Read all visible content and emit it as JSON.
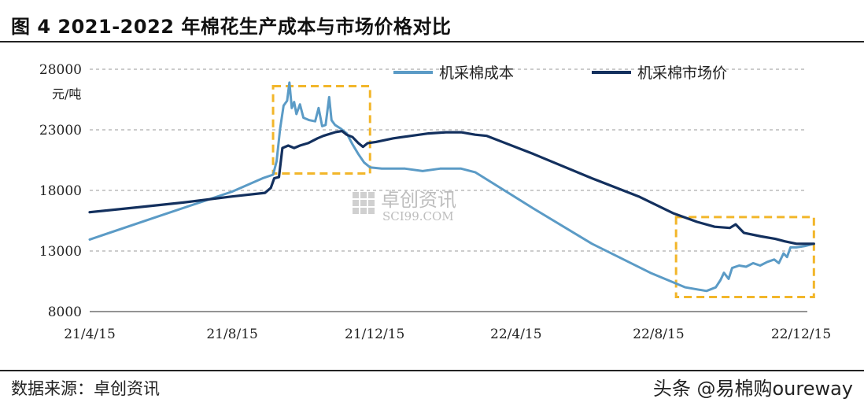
{
  "header": {
    "title": "图 4 2021-2022 年棉花生产成本与市场价格对比"
  },
  "footer": {
    "source": "数据来源：卓创资讯",
    "corner_text": "头条 @易棉购oureway"
  },
  "watermark": {
    "name": "卓创资讯",
    "site": "SCI99.COM"
  },
  "colors": {
    "cost": "#5b9bc6",
    "price": "#13305e",
    "highlight": "#f2b62a",
    "grid": "#999999"
  },
  "chart_data": {
    "type": "line",
    "unit_label": "元/吨",
    "y_ticks": [
      "28000",
      "23000",
      "18000",
      "13000",
      "8000"
    ],
    "y_tick_values": [
      28000,
      23000,
      18000,
      13000,
      8000
    ],
    "x_ticks": [
      "21/4/15",
      "21/8/15",
      "21/12/15",
      "22/4/15",
      "22/8/15",
      "22/12/15"
    ],
    "x_tick_values": [
      0,
      122,
      244,
      365,
      487,
      609
    ],
    "ylim": [
      8000,
      28000
    ],
    "xlim": [
      0,
      609
    ],
    "grid": "horizontal dashed",
    "legend_position": "top-right",
    "series": [
      {
        "name": "机采棉成本",
        "color": "#5b9bc6",
        "points": [
          [
            0,
            13950
          ],
          [
            60,
            15900
          ],
          [
            122,
            17900
          ],
          [
            148,
            19000
          ],
          [
            157,
            19300
          ],
          [
            160,
            20400
          ],
          [
            163,
            23100
          ],
          [
            166,
            25000
          ],
          [
            169,
            25400
          ],
          [
            171,
            26900
          ],
          [
            173,
            24800
          ],
          [
            175,
            25300
          ],
          [
            177,
            24300
          ],
          [
            180,
            25100
          ],
          [
            183,
            24000
          ],
          [
            188,
            23800
          ],
          [
            193,
            23700
          ],
          [
            196,
            24800
          ],
          [
            199,
            23300
          ],
          [
            202,
            23400
          ],
          [
            205,
            25700
          ],
          [
            207,
            23800
          ],
          [
            210,
            23400
          ],
          [
            215,
            23100
          ],
          [
            220,
            22700
          ],
          [
            225,
            21800
          ],
          [
            230,
            21000
          ],
          [
            235,
            20300
          ],
          [
            240,
            19900
          ],
          [
            250,
            19800
          ],
          [
            270,
            19800
          ],
          [
            285,
            19600
          ],
          [
            300,
            19800
          ],
          [
            318,
            19800
          ],
          [
            330,
            19500
          ],
          [
            380,
            16500
          ],
          [
            430,
            13600
          ],
          [
            480,
            11200
          ],
          [
            510,
            10000
          ],
          [
            528,
            9700
          ],
          [
            536,
            10000
          ],
          [
            540,
            10600
          ],
          [
            543,
            11200
          ],
          [
            547,
            10700
          ],
          [
            550,
            11600
          ],
          [
            556,
            11800
          ],
          [
            562,
            11700
          ],
          [
            568,
            12000
          ],
          [
            574,
            11800
          ],
          [
            580,
            12100
          ],
          [
            586,
            12300
          ],
          [
            590,
            12000
          ],
          [
            594,
            12800
          ],
          [
            597,
            12500
          ],
          [
            600,
            13300
          ],
          [
            605,
            13300
          ],
          [
            612,
            13400
          ],
          [
            620,
            13600
          ]
        ]
      },
      {
        "name": "机采棉市场价",
        "color": "#13305e",
        "points": [
          [
            0,
            16200
          ],
          [
            40,
            16600
          ],
          [
            80,
            17000
          ],
          [
            122,
            17500
          ],
          [
            150,
            17800
          ],
          [
            155,
            18200
          ],
          [
            158,
            19000
          ],
          [
            162,
            19100
          ],
          [
            165,
            21500
          ],
          [
            170,
            21700
          ],
          [
            175,
            21500
          ],
          [
            180,
            21700
          ],
          [
            187,
            21900
          ],
          [
            195,
            22300
          ],
          [
            200,
            22500
          ],
          [
            210,
            22800
          ],
          [
            216,
            22900
          ],
          [
            220,
            22600
          ],
          [
            225,
            22400
          ],
          [
            230,
            21900
          ],
          [
            234,
            21600
          ],
          [
            238,
            21900
          ],
          [
            245,
            22000
          ],
          [
            260,
            22300
          ],
          [
            275,
            22500
          ],
          [
            290,
            22700
          ],
          [
            305,
            22800
          ],
          [
            318,
            22800
          ],
          [
            330,
            22600
          ],
          [
            340,
            22500
          ],
          [
            380,
            21000
          ],
          [
            430,
            19000
          ],
          [
            470,
            17500
          ],
          [
            500,
            16100
          ],
          [
            520,
            15400
          ],
          [
            535,
            15000
          ],
          [
            548,
            14900
          ],
          [
            553,
            15200
          ],
          [
            560,
            14500
          ],
          [
            575,
            14200
          ],
          [
            587,
            14000
          ],
          [
            595,
            13800
          ],
          [
            605,
            13600
          ],
          [
            620,
            13600
          ]
        ]
      }
    ],
    "highlight_boxes": [
      {
        "x_range": [
          157,
          240
        ],
        "y_range": [
          19400,
          26600
        ]
      },
      {
        "x_range": [
          502,
          620
        ],
        "y_range": [
          9200,
          15800
        ]
      }
    ]
  }
}
